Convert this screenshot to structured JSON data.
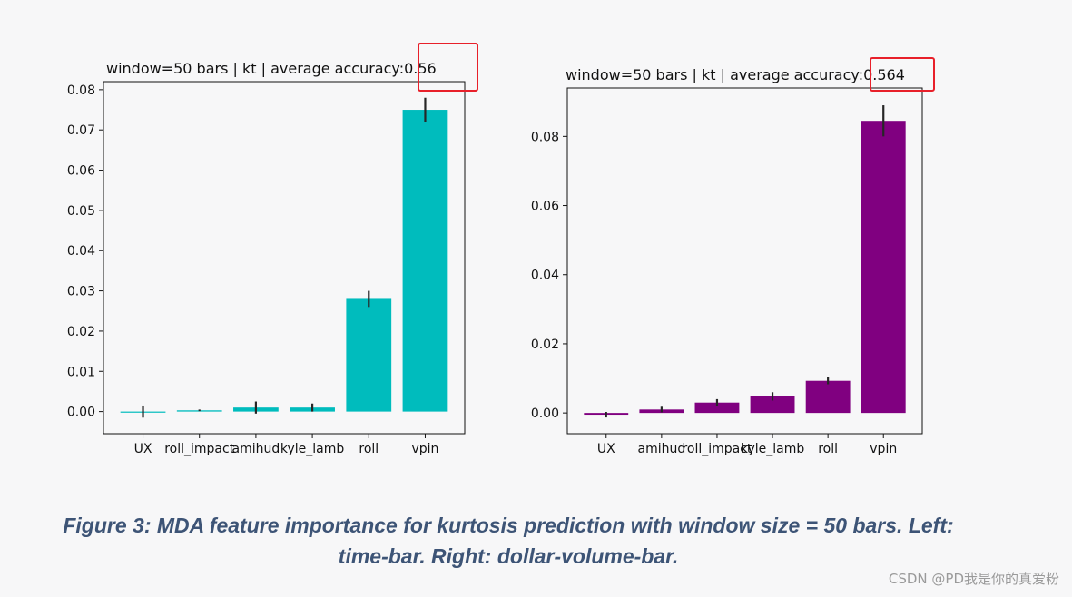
{
  "colors": {
    "left_bar": "#00bcbd",
    "right_bar": "#800080",
    "error_bar": "#262626",
    "highlight_box": "#e8202a",
    "caption_text": "#3d5476"
  },
  "chart_data": [
    {
      "type": "bar",
      "title": "window=50 bars | kt | average accuracy:0.56",
      "highlighted_title_part": "0.56",
      "categories": [
        "UX",
        "roll_impact",
        "amihud",
        "kyle_lamb",
        "roll",
        "vpin"
      ],
      "values": [
        0.0,
        0.0003,
        0.001,
        0.001,
        0.028,
        0.075
      ],
      "errors": [
        0.0015,
        0.0002,
        0.0015,
        0.001,
        0.002,
        0.003
      ],
      "ylim": [
        -0.0055,
        0.082
      ],
      "yticks": [
        0.0,
        0.01,
        0.02,
        0.03,
        0.04,
        0.05,
        0.06,
        0.07,
        0.08
      ],
      "ytick_labels": [
        "0.00",
        "0.01",
        "0.02",
        "0.03",
        "0.04",
        "0.05",
        "0.06",
        "0.07",
        "0.08"
      ],
      "xlabel": "",
      "ylabel": "",
      "grid": false
    },
    {
      "type": "bar",
      "title": "window=50 bars | kt | average accuracy:0.564",
      "highlighted_title_part": "0.564",
      "categories": [
        "UX",
        "amihud",
        "roll_impact",
        "kyle_lamb",
        "roll",
        "vpin"
      ],
      "values": [
        -0.0005,
        0.001,
        0.003,
        0.0048,
        0.0093,
        0.0845
      ],
      "errors": [
        0.0008,
        0.0008,
        0.001,
        0.0012,
        0.001,
        0.0045
      ],
      "ylim": [
        -0.006,
        0.094
      ],
      "yticks": [
        0.0,
        0.02,
        0.04,
        0.06,
        0.08
      ],
      "ytick_labels": [
        "0.00",
        "0.02",
        "0.04",
        "0.06",
        "0.08"
      ],
      "xlabel": "",
      "ylabel": "",
      "grid": false
    }
  ],
  "caption": {
    "line1": "Figure   3: MDA feature importance for kurtosis prediction with window size = 50 bars. Left:",
    "line2": "time-bar. Right: dollar-volume-bar."
  },
  "watermark": "CSDN @PD我是你的真爱粉"
}
